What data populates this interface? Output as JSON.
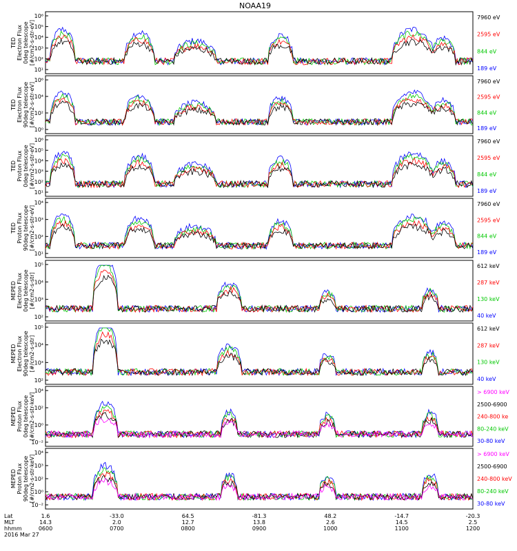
{
  "title": "NOAA19",
  "colors": {
    "black": "#000000",
    "red": "#ff0000",
    "green": "#00c800",
    "blue": "#0000ff",
    "magenta": "#ff00ff"
  },
  "chart_data": [
    {
      "type": "line",
      "ylabel": [
        "TED",
        "Electron Flux",
        "0deg telescope",
        "[#/cm2-s-str-eV]"
      ],
      "yticks": [
        "10¹",
        "10²",
        "10³",
        "10⁴",
        "10⁵",
        "10⁶"
      ],
      "yrange": [
        1,
        6
      ],
      "legend": [
        {
          "label": "7960 eV",
          "color": "#000000"
        },
        {
          "label": "2595 eV",
          "color": "#ff0000"
        },
        {
          "label": "844 eV",
          "color": "#00c800"
        },
        {
          "label": "189 eV",
          "color": "#0000ff"
        }
      ]
    },
    {
      "type": "line",
      "ylabel": [
        "TED",
        "Electron Flux",
        "90deg telescope",
        "[#/cm2-s-str-eV]"
      ],
      "yticks": [
        "10⁰",
        "10²",
        "10⁴",
        "10⁶"
      ],
      "yrange": [
        0,
        6
      ],
      "legend": [
        {
          "label": "7960 eV",
          "color": "#000000"
        },
        {
          "label": "2595 eV",
          "color": "#ff0000"
        },
        {
          "label": "844 eV",
          "color": "#00c800"
        },
        {
          "label": "189 eV",
          "color": "#0000ff"
        }
      ]
    },
    {
      "type": "line",
      "ylabel": [
        "TED",
        "Proton Flux",
        "0deg telescope",
        "[#/cm2-s-str-eV]"
      ],
      "yticks": [
        "10¹",
        "10²",
        "10³",
        "10⁴",
        "10⁵",
        "10⁶"
      ],
      "yrange": [
        1,
        6
      ],
      "legend": [
        {
          "label": "7960 eV",
          "color": "#000000"
        },
        {
          "label": "2595 eV",
          "color": "#ff0000"
        },
        {
          "label": "844 eV",
          "color": "#00c800"
        },
        {
          "label": "189 eV",
          "color": "#0000ff"
        }
      ]
    },
    {
      "type": "line",
      "ylabel": [
        "TED",
        "Proton Flux",
        "90deg telescope",
        "[#/cm2-s-str-eV]"
      ],
      "yticks": [
        "10¹",
        "10²",
        "10³",
        "10⁴"
      ],
      "yrange": [
        1,
        4.4
      ],
      "legend": [
        {
          "label": "7960 eV",
          "color": "#000000"
        },
        {
          "label": "2595 eV",
          "color": "#ff0000"
        },
        {
          "label": "844 eV",
          "color": "#00c800"
        },
        {
          "label": "189 eV",
          "color": "#0000ff"
        }
      ]
    },
    {
      "type": "line",
      "ylabel": [
        "MEPED",
        "Electron Flux",
        "0deg telescope",
        "[#/cm2-s-str]"
      ],
      "yticks": [
        "10²",
        "10³",
        "10⁴",
        "10⁵"
      ],
      "yrange": [
        1.8,
        5.5
      ],
      "legend": [
        {
          "label": "612 keV",
          "color": "#000000"
        },
        {
          "label": "287 keV",
          "color": "#ff0000"
        },
        {
          "label": "130 keV",
          "color": "#00c800"
        },
        {
          "label": "40 keV",
          "color": "#0000ff"
        }
      ]
    },
    {
      "type": "line",
      "ylabel": [
        "MEPED",
        "Electron Flux",
        "90deg telescope",
        "[#/cm2-s-str]"
      ],
      "yticks": [
        "10²",
        "10³",
        "10⁴",
        "10⁵"
      ],
      "yrange": [
        1.8,
        5.5
      ],
      "legend": [
        {
          "label": "612 keV",
          "color": "#000000"
        },
        {
          "label": "287 keV",
          "color": "#ff0000"
        },
        {
          "label": "130 keV",
          "color": "#00c800"
        },
        {
          "label": "40 keV",
          "color": "#0000ff"
        }
      ]
    },
    {
      "type": "line",
      "ylabel": [
        "MEPED",
        "Proton Flux",
        "0deg telescope",
        "[#/cm2-s-str-keV]"
      ],
      "yticks": [
        "10⁻²",
        "10⁰",
        "10²",
        "10⁴"
      ],
      "yrange": [
        -2.5,
        5
      ],
      "legend": [
        {
          "label": "> 6900 keV",
          "color": "#ff00ff"
        },
        {
          "label": "2500-6900",
          "color": "#000000"
        },
        {
          "label": "240-800 ke",
          "color": "#ff0000"
        },
        {
          "label": "80-240 keV",
          "color": "#00c800"
        },
        {
          "label": "30-80 keV",
          "color": "#0000ff"
        }
      ]
    },
    {
      "type": "line",
      "ylabel": [
        "MEPED",
        "Proton Flux",
        "90deg telescope",
        "[#/cm2-s-str-keV]"
      ],
      "yticks": [
        "10⁻²",
        "10⁰",
        "10²",
        "10³",
        "10⁴"
      ],
      "yrange": [
        -2.5,
        4.8
      ],
      "legend": [
        {
          "label": "> 6900 keV",
          "color": "#ff00ff"
        },
        {
          "label": "2500-6900",
          "color": "#000000"
        },
        {
          "label": "240-800 keV",
          "color": "#ff0000"
        },
        {
          "label": "80-240 keV",
          "color": "#00c800"
        },
        {
          "label": "30-80 keV",
          "color": "#0000ff"
        }
      ]
    }
  ],
  "xaxis": {
    "row_labels": [
      "Lat",
      "MLT",
      "hhmm",
      "2016 Mar 27"
    ],
    "ticks": [
      {
        "lat": "1.6",
        "mlt": "14.3",
        "hhmm": "0600"
      },
      {
        "lat": "-33.0",
        "mlt": "2.0",
        "hhmm": "0700"
      },
      {
        "lat": "64.5",
        "mlt": "12.7",
        "hhmm": "0800"
      },
      {
        "lat": "-81.3",
        "mlt": "13.8",
        "hhmm": "0900"
      },
      {
        "lat": "48.2",
        "mlt": "2.6",
        "hhmm": "1000"
      },
      {
        "lat": "-14.7",
        "mlt": "14.5",
        "hhmm": "1100"
      },
      {
        "lat": "-20.3",
        "mlt": "2.5",
        "hhmm": "1200"
      }
    ]
  }
}
